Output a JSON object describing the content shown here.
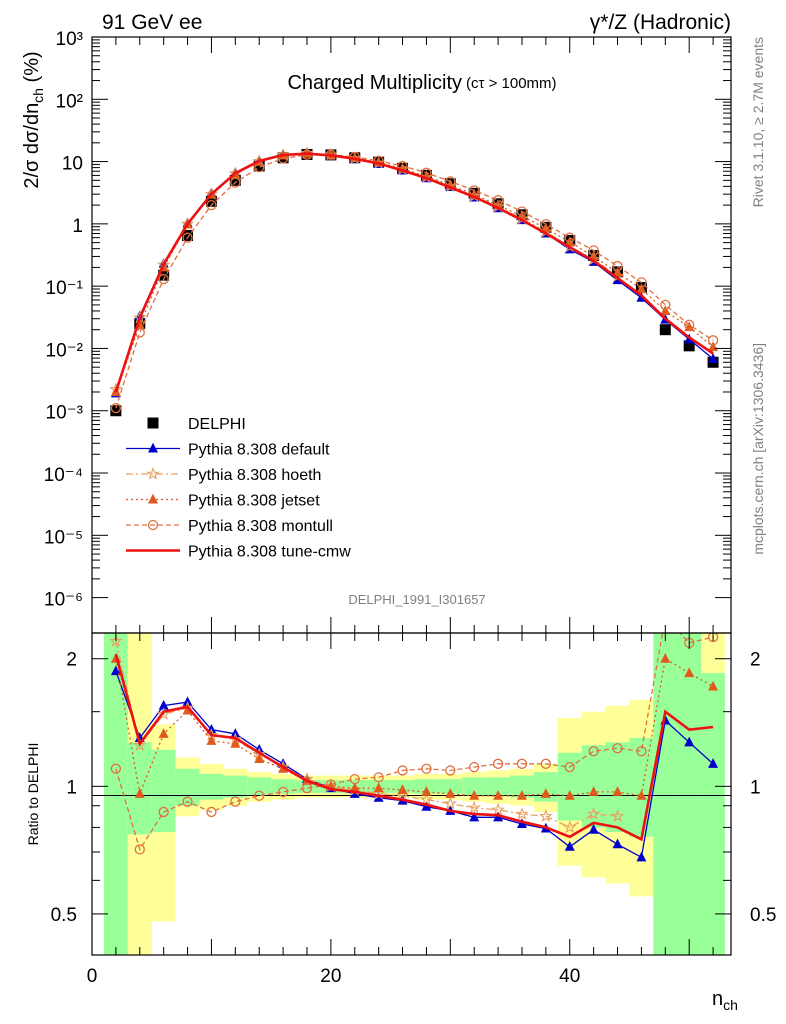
{
  "header": {
    "energy_label": "91 GeV ee",
    "process_label": "γ*/Z (Hadronic)",
    "title": "Charged Multiplicity",
    "title_cut": "(cτ > 100mm)",
    "side_events": "Rivet 3.1.10, ≥ 2.7M events",
    "side_source": "mcplots.cern.ch [arXiv:1306.3436]",
    "analysis_id": "DELPHI_1991_I301657"
  },
  "chart_data": [
    {
      "type": "scatter",
      "title": "Charged Multiplicity",
      "ylabel": "2/σ dσ/dn_ch (%)",
      "yscale": "log",
      "xlim": [
        0,
        53.5
      ],
      "ylim": [
        3e-07,
        1000
      ],
      "y_ticks": [
        {
          "value": 1000,
          "label": "10³"
        },
        {
          "value": 100,
          "label": "10²"
        },
        {
          "value": 10,
          "label": "10"
        },
        {
          "value": 1,
          "label": "1"
        },
        {
          "value": 0.1,
          "label": "10⁻¹"
        },
        {
          "value": 0.01,
          "label": "10⁻²"
        },
        {
          "value": 0.001,
          "label": "10⁻³"
        },
        {
          "value": 0.0001,
          "label": "10⁻⁴"
        },
        {
          "value": 1e-05,
          "label": "10⁻⁵"
        },
        {
          "value": 1e-06,
          "label": "10⁻⁶"
        }
      ],
      "legend_position": "lower-left",
      "x": [
        2,
        4,
        6,
        8,
        10,
        12,
        14,
        16,
        18,
        20,
        22,
        24,
        26,
        28,
        30,
        32,
        34,
        36,
        38,
        40,
        42,
        44,
        46,
        48,
        50,
        52
      ],
      "series": [
        {
          "name": "DELPHI",
          "color": "#000000",
          "marker": "square",
          "values": [
            0.001,
            0.025,
            0.15,
            0.65,
            2.3,
            5.0,
            8.5,
            11.5,
            13.0,
            12.8,
            11.5,
            9.8,
            7.8,
            6.0,
            4.4,
            3.1,
            2.1,
            1.4,
            0.88,
            0.54,
            0.31,
            0.17,
            0.095,
            0.02,
            0.011,
            0.006
          ]
        },
        {
          "name": "Pythia 8.308 default",
          "color": "#0000cc",
          "marker": "triangle",
          "line": "solid",
          "values": [
            0.0019,
            0.033,
            0.23,
            1.03,
            3.1,
            6.6,
            10.3,
            12.9,
            13.5,
            12.6,
            11.1,
            9.2,
            7.2,
            5.4,
            3.9,
            2.65,
            1.78,
            1.15,
            0.7,
            0.39,
            0.245,
            0.125,
            0.065,
            0.029,
            0.014,
            0.0068
          ]
        },
        {
          "name": "Pythia 8.308 hoeth",
          "color": "#e8a060",
          "marker": "star",
          "line": "dashdot",
          "values": [
            0.0022,
            0.031,
            0.22,
            1.0,
            3.0,
            6.4,
            10.1,
            12.8,
            13.6,
            12.9,
            11.3,
            9.5,
            7.5,
            5.6,
            4.0,
            2.8,
            1.9,
            1.21,
            0.75,
            0.43,
            0.27,
            0.145
          ]
        },
        {
          "name": "Pythia 8.308 jetset",
          "color": "#e05a1e",
          "marker": "triangle",
          "line": "dotted",
          "values": [
            0.002,
            0.024,
            0.2,
            0.98,
            2.95,
            6.3,
            9.9,
            12.6,
            13.4,
            12.8,
            11.4,
            9.7,
            7.7,
            5.8,
            4.2,
            2.95,
            2.0,
            1.33,
            0.85,
            0.51,
            0.3,
            0.165,
            0.09,
            0.04,
            0.022,
            0.0105
          ]
        },
        {
          "name": "Pythia 8.308 montull",
          "color": "#e07040",
          "marker": "circle",
          "line": "dashed",
          "values": [
            0.0011,
            0.018,
            0.13,
            0.6,
            2.0,
            4.6,
            8.1,
            11.2,
            12.9,
            12.9,
            11.9,
            10.3,
            8.5,
            6.6,
            4.8,
            3.45,
            2.4,
            1.58,
            0.99,
            0.6,
            0.375,
            0.21,
            0.115,
            0.05,
            0.024,
            0.0135
          ]
        },
        {
          "name": "Pythia 8.308 tune-cmw",
          "color": "#ee1111",
          "marker": "none",
          "line": "solid-thick",
          "values": [
            0.002,
            0.031,
            0.225,
            1.0,
            3.0,
            6.5,
            10.2,
            12.8,
            13.4,
            12.6,
            11.1,
            9.3,
            7.2,
            5.4,
            3.85,
            2.7,
            1.8,
            1.15,
            0.7,
            0.42,
            0.255,
            0.135,
            0.071,
            0.03,
            0.015,
            0.0083
          ]
        }
      ]
    },
    {
      "type": "scatter",
      "xlabel": "n_ch",
      "ylabel": "Ratio to DELPHI",
      "yscale": "log",
      "xlim": [
        0,
        53.5
      ],
      "ylim": [
        0.4,
        2.3
      ],
      "x_ticks": [
        0,
        20,
        40
      ],
      "y_ticks": [
        0.5,
        1,
        2
      ],
      "reference_line": 1,
      "x": [
        2,
        4,
        6,
        8,
        10,
        12,
        14,
        16,
        18,
        20,
        22,
        24,
        26,
        28,
        30,
        32,
        34,
        36,
        38,
        40,
        42,
        44,
        46,
        48,
        50,
        52
      ],
      "band_bins": [
        {
          "xlo": 1,
          "xhi": 3,
          "green": [
            0.3,
            3.0
          ],
          "yellow": [
            0.3,
            3.0
          ]
        },
        {
          "xlo": 3,
          "xhi": 5,
          "green": [
            0.77,
            1.27
          ],
          "yellow": [
            0.3,
            3.0
          ]
        },
        {
          "xlo": 5,
          "xhi": 7,
          "green": [
            0.78,
            1.22
          ],
          "yellow": [
            0.48,
            1.4
          ]
        },
        {
          "xlo": 7,
          "xhi": 9,
          "green": [
            0.9,
            1.1
          ],
          "yellow": [
            0.85,
            1.17
          ]
        },
        {
          "xlo": 9,
          "xhi": 11,
          "green": [
            0.93,
            1.07
          ],
          "yellow": [
            0.88,
            1.13
          ]
        },
        {
          "xlo": 11,
          "xhi": 13,
          "green": [
            0.94,
            1.06
          ],
          "yellow": [
            0.9,
            1.1
          ]
        },
        {
          "xlo": 13,
          "xhi": 15,
          "green": [
            0.95,
            1.05
          ],
          "yellow": [
            0.92,
            1.08
          ]
        },
        {
          "xlo": 15,
          "xhi": 17,
          "green": [
            0.96,
            1.04
          ],
          "yellow": [
            0.93,
            1.07
          ]
        },
        {
          "xlo": 17,
          "xhi": 19,
          "green": [
            0.965,
            1.035
          ],
          "yellow": [
            0.94,
            1.06
          ]
        },
        {
          "xlo": 19,
          "xhi": 21,
          "green": [
            0.965,
            1.035
          ],
          "yellow": [
            0.94,
            1.06
          ]
        },
        {
          "xlo": 21,
          "xhi": 23,
          "green": [
            0.965,
            1.035
          ],
          "yellow": [
            0.94,
            1.06
          ]
        },
        {
          "xlo": 23,
          "xhi": 25,
          "green": [
            0.965,
            1.035
          ],
          "yellow": [
            0.94,
            1.06
          ]
        },
        {
          "xlo": 25,
          "xhi": 27,
          "green": [
            0.965,
            1.035
          ],
          "yellow": [
            0.94,
            1.06
          ]
        },
        {
          "xlo": 27,
          "xhi": 29,
          "green": [
            0.96,
            1.04
          ],
          "yellow": [
            0.93,
            1.07
          ]
        },
        {
          "xlo": 29,
          "xhi": 31,
          "green": [
            0.96,
            1.04
          ],
          "yellow": [
            0.93,
            1.07
          ]
        },
        {
          "xlo": 31,
          "xhi": 33,
          "green": [
            0.95,
            1.05
          ],
          "yellow": [
            0.92,
            1.08
          ]
        },
        {
          "xlo": 33,
          "xhi": 35,
          "green": [
            0.95,
            1.05
          ],
          "yellow": [
            0.91,
            1.09
          ]
        },
        {
          "xlo": 35,
          "xhi": 37,
          "green": [
            0.94,
            1.06
          ],
          "yellow": [
            0.9,
            1.1
          ]
        },
        {
          "xlo": 37,
          "xhi": 39,
          "green": [
            0.92,
            1.08
          ],
          "yellow": [
            0.87,
            1.13
          ]
        },
        {
          "xlo": 39,
          "xhi": 41,
          "green": [
            0.83,
            1.2
          ],
          "yellow": [
            0.65,
            1.45
          ]
        },
        {
          "xlo": 41,
          "xhi": 43,
          "green": [
            0.8,
            1.25
          ],
          "yellow": [
            0.61,
            1.5
          ]
        },
        {
          "xlo": 43,
          "xhi": 45,
          "green": [
            0.78,
            1.27
          ],
          "yellow": [
            0.59,
            1.55
          ]
        },
        {
          "xlo": 45,
          "xhi": 47,
          "green": [
            0.76,
            1.3
          ],
          "yellow": [
            0.55,
            1.6
          ]
        },
        {
          "xlo": 47,
          "xhi": 49,
          "green": [
            0.3,
            3.0
          ],
          "yellow": [
            0.3,
            3.0
          ]
        },
        {
          "xlo": 49,
          "xhi": 51,
          "green": [
            0.3,
            3.0
          ],
          "yellow": [
            0.3,
            3.0
          ]
        },
        {
          "xlo": 51,
          "xhi": 53,
          "green": [
            0.3,
            1.85
          ],
          "yellow": [
            0.3,
            3.0
          ]
        }
      ],
      "series": [
        {
          "name": "Pythia 8.308 default",
          "color": "#0000cc",
          "marker": "triangle",
          "line": "solid",
          "values": [
            1.87,
            1.3,
            1.55,
            1.58,
            1.36,
            1.33,
            1.22,
            1.13,
            1.04,
            0.99,
            0.96,
            0.94,
            0.925,
            0.895,
            0.875,
            0.845,
            0.845,
            0.815,
            0.795,
            0.72,
            0.79,
            0.73,
            0.68,
            1.43,
            1.27,
            1.13
          ]
        },
        {
          "name": "Pythia 8.308 hoeth",
          "color": "#e8a060",
          "marker": "star",
          "line": "dashdot",
          "values": [
            2.2,
            1.25,
            1.48,
            1.53,
            1.32,
            1.29,
            1.19,
            1.11,
            1.04,
            1.0,
            0.98,
            0.96,
            0.95,
            0.93,
            0.91,
            0.89,
            0.88,
            0.86,
            0.85,
            0.8,
            0.86,
            0.85
          ]
        },
        {
          "name": "Pythia 8.308 jetset",
          "color": "#e05a1e",
          "marker": "triangle",
          "line": "dotted",
          "values": [
            2.0,
            0.96,
            1.33,
            1.51,
            1.28,
            1.26,
            1.16,
            1.1,
            1.03,
            1.0,
            0.99,
            0.99,
            0.98,
            0.97,
            0.96,
            0.95,
            0.95,
            0.95,
            0.96,
            0.95,
            0.97,
            0.97,
            0.95,
            2.0,
            1.85,
            1.72
          ]
        },
        {
          "name": "Pythia 8.308 montull",
          "color": "#e07040",
          "marker": "circle",
          "line": "dashed",
          "values": [
            1.1,
            0.71,
            0.87,
            0.92,
            0.87,
            0.92,
            0.95,
            0.97,
            0.99,
            1.01,
            1.04,
            1.05,
            1.09,
            1.1,
            1.09,
            1.11,
            1.13,
            1.13,
            1.13,
            1.11,
            1.21,
            1.23,
            1.21,
            2.5,
            2.18,
            2.25
          ]
        },
        {
          "name": "Pythia 8.308 tune-cmw",
          "color": "#ee1111",
          "marker": "none",
          "line": "solid-thick",
          "values": [
            2.05,
            1.26,
            1.5,
            1.54,
            1.32,
            1.3,
            1.2,
            1.11,
            1.03,
            0.985,
            0.97,
            0.95,
            0.93,
            0.905,
            0.875,
            0.86,
            0.855,
            0.825,
            0.8,
            0.76,
            0.82,
            0.8,
            0.75,
            1.5,
            1.36,
            1.38
          ]
        }
      ]
    }
  ]
}
